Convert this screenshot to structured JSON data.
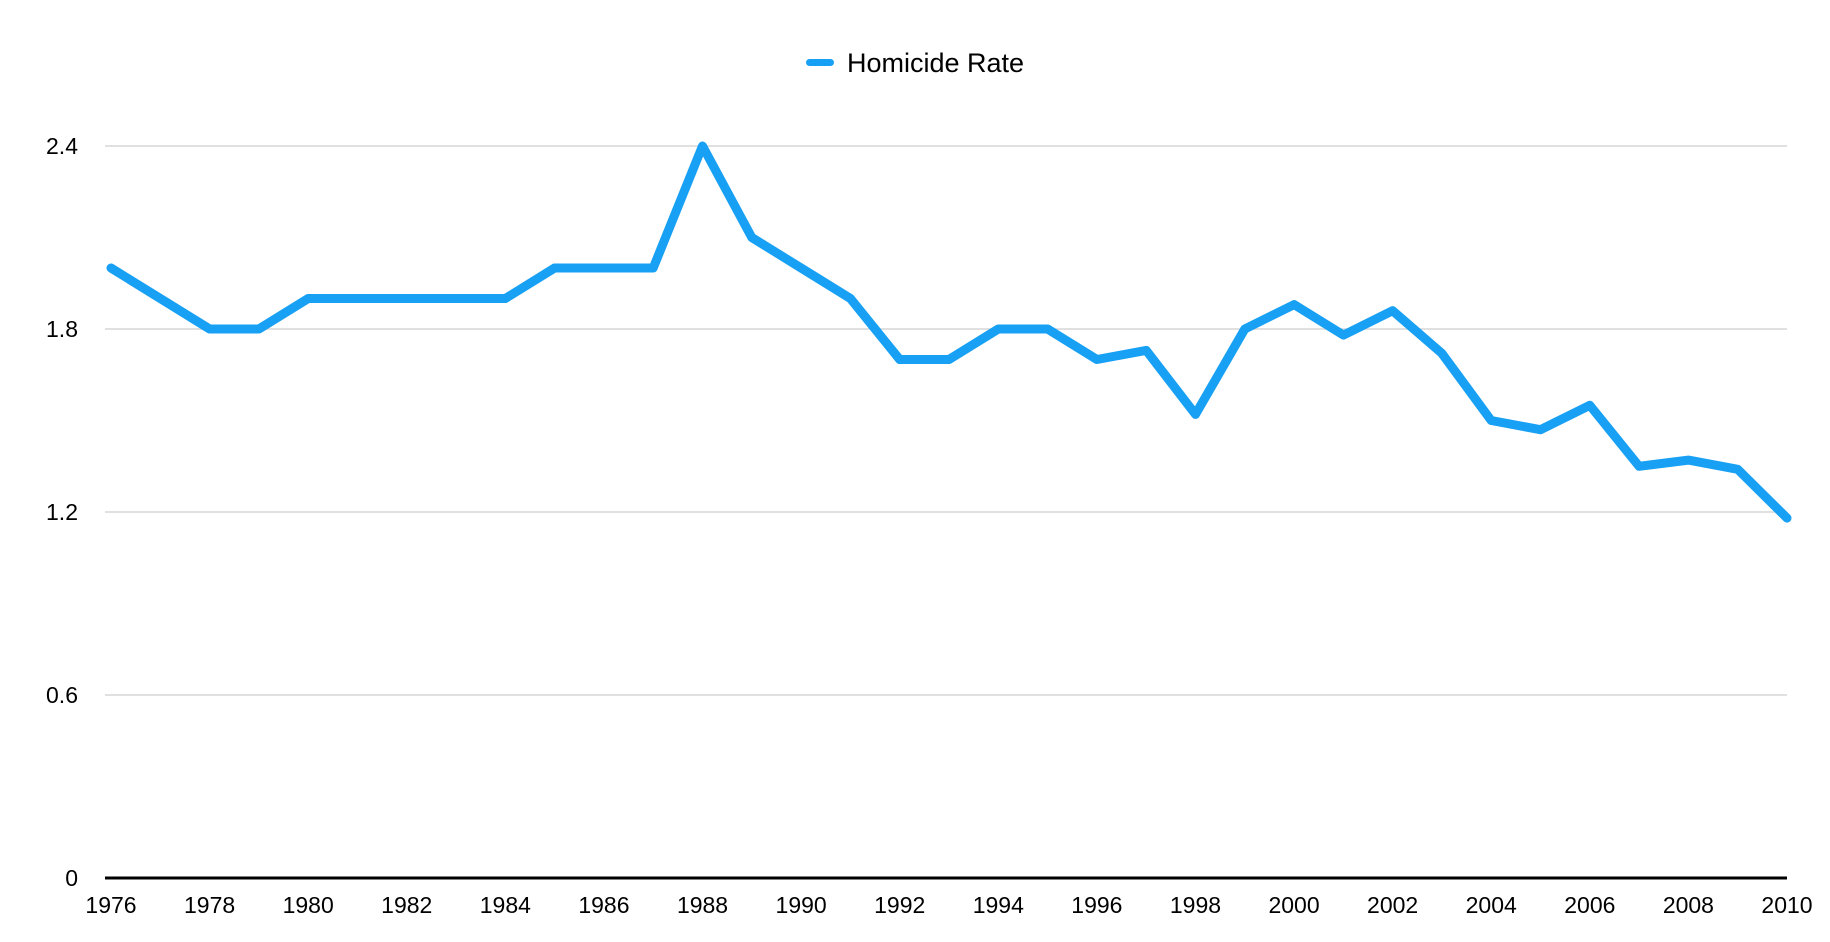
{
  "chart_data": {
    "type": "line",
    "title": "",
    "xlabel": "",
    "ylabel": "",
    "legend_position": "top-center",
    "grid": "horizontal",
    "series": [
      {
        "name": "Homicide Rate",
        "color": "#17A0F4",
        "x": [
          1976,
          1977,
          1978,
          1979,
          1980,
          1981,
          1982,
          1983,
          1984,
          1985,
          1986,
          1987,
          1988,
          1989,
          1990,
          1991,
          1992,
          1993,
          1994,
          1995,
          1996,
          1997,
          1998,
          1999,
          2000,
          2001,
          2002,
          2003,
          2004,
          2005,
          2006,
          2007,
          2008,
          2009,
          2010
        ],
        "values": [
          2.0,
          1.9,
          1.8,
          1.8,
          1.9,
          1.9,
          1.9,
          1.9,
          1.9,
          2.0,
          2.0,
          2.0,
          2.4,
          2.1,
          2.0,
          1.9,
          1.7,
          1.7,
          1.8,
          1.8,
          1.7,
          1.73,
          1.52,
          1.8,
          1.88,
          1.78,
          1.86,
          1.72,
          1.5,
          1.47,
          1.55,
          1.35,
          1.37,
          1.34,
          1.18
        ]
      }
    ],
    "xlim": [
      1976,
      2010
    ],
    "ylim": [
      0,
      2.4
    ],
    "y_ticks": [
      0,
      0.6,
      1.2,
      1.8,
      2.4
    ],
    "y_tick_labels": [
      "0",
      "0.6",
      "1.2",
      "1.8",
      "2.4"
    ],
    "x_ticks": [
      1976,
      1978,
      1980,
      1982,
      1984,
      1986,
      1988,
      1990,
      1992,
      1994,
      1996,
      1998,
      2000,
      2002,
      2004,
      2006,
      2008,
      2010
    ],
    "x_tick_labels": [
      "1976",
      "1978",
      "1980",
      "1982",
      "1984",
      "1986",
      "1988",
      "1990",
      "1992",
      "1994",
      "1996",
      "1998",
      "2000",
      "2002",
      "2004",
      "2006",
      "2008",
      "2010"
    ],
    "colors": {
      "line": "#17A0F4",
      "gridline": "#D6D6D6",
      "axis_line": "#000000",
      "tick_text": "#000000",
      "background": "#FFFFFF"
    }
  }
}
